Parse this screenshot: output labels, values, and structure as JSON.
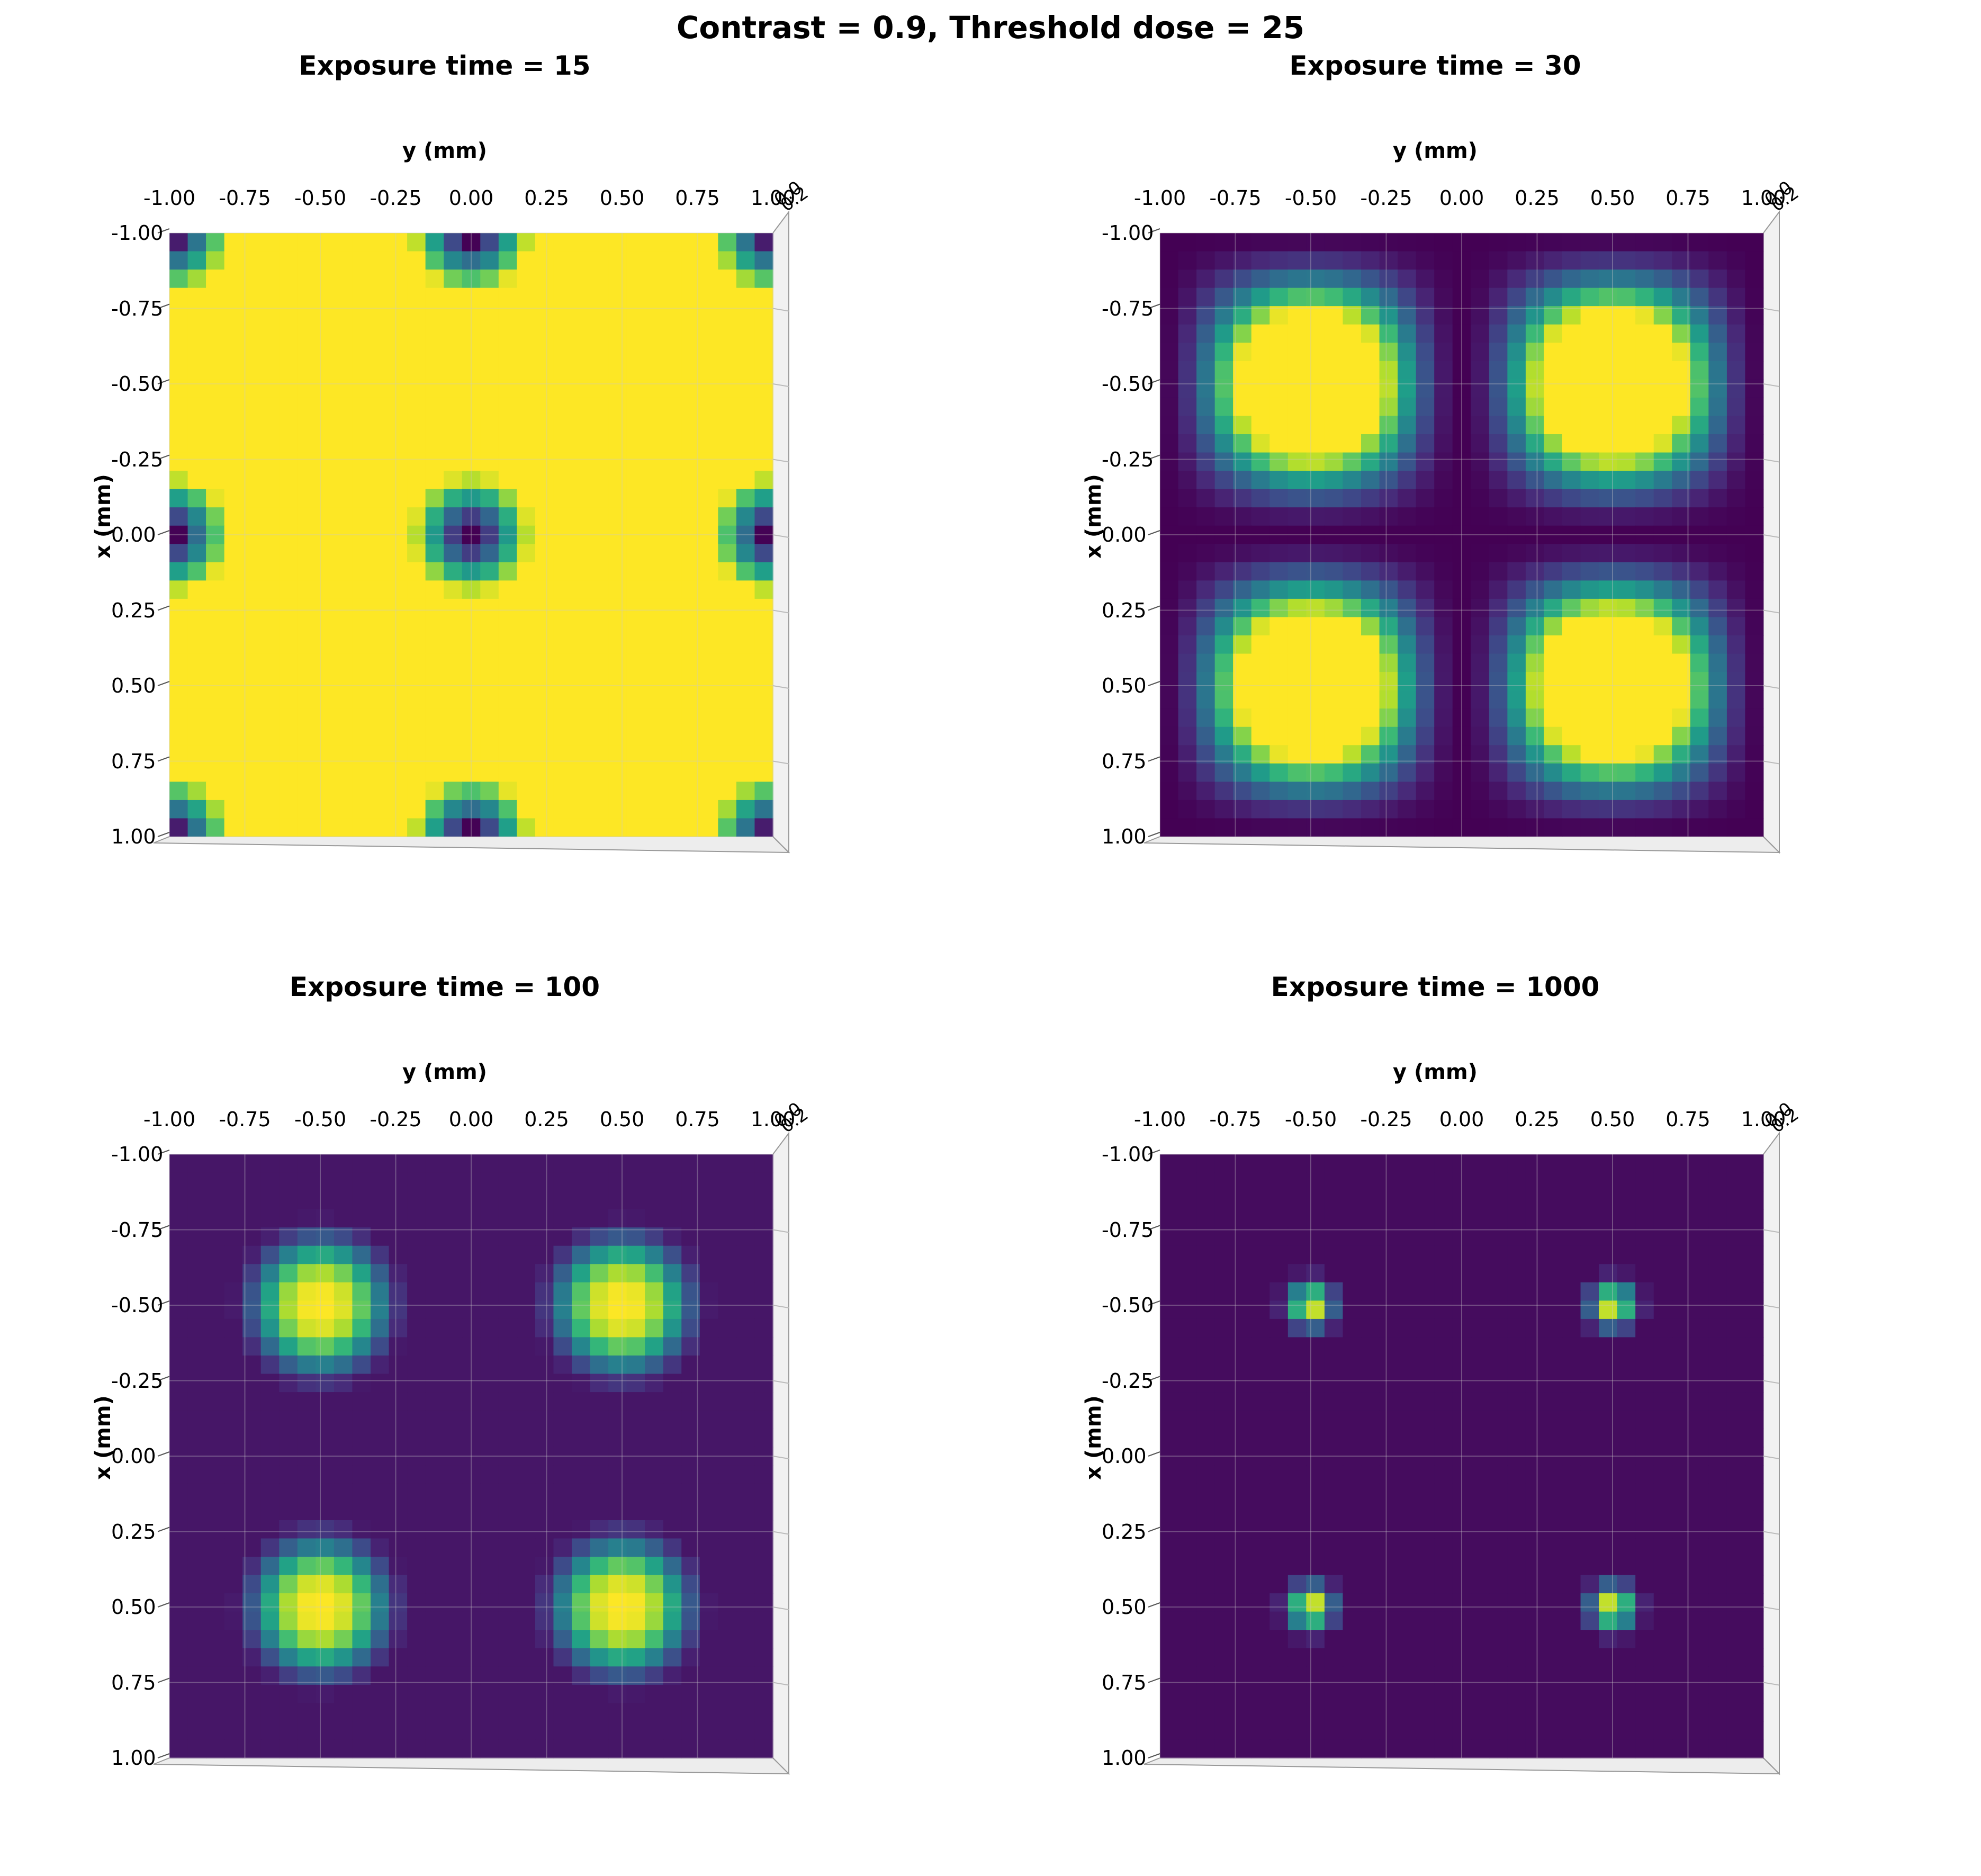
{
  "suptitle": "Contrast = 0.9, Threshold dose = 25",
  "chart_data": [
    {
      "type": "heatmap",
      "title": "Exposure time = 15",
      "exposure_time": 15,
      "xlabel": "x (mm)",
      "ylabel": "y (mm)",
      "x_ticks": [
        "-1.00",
        "-0.75",
        "-0.50",
        "-0.25",
        "0.00",
        "0.25",
        "0.50",
        "0.75",
        "1.00"
      ],
      "y_ticks": [
        "-1.00",
        "-0.75",
        "-0.50",
        "-0.25",
        "0.00",
        "0.25",
        "0.50",
        "0.75",
        "1.00"
      ],
      "x_range": [
        -1,
        1
      ],
      "y_range": [
        -1,
        1
      ],
      "grid_size": 33,
      "colormap": "viridis",
      "pattern": "yellow field with dark spots at x,y ∈ {-1, 0, 1}",
      "z_tick_fragments": [
        "0.0",
        "0.2"
      ]
    },
    {
      "type": "heatmap",
      "title": "Exposure time = 30",
      "exposure_time": 30,
      "xlabel": "x (mm)",
      "ylabel": "y (mm)",
      "x_ticks": [
        "-1.00",
        "-0.75",
        "-0.50",
        "-0.25",
        "0.00",
        "0.25",
        "0.50",
        "0.75",
        "1.00"
      ],
      "y_ticks": [
        "-1.00",
        "-0.75",
        "-0.50",
        "-0.25",
        "0.00",
        "0.25",
        "0.50",
        "0.75",
        "1.00"
      ],
      "x_range": [
        -1,
        1
      ],
      "y_range": [
        -1,
        1
      ],
      "grid_size": 33,
      "colormap": "viridis",
      "pattern": "four bright lobes at (±0.5, ±0.5), dark at center and edges",
      "z_tick_fragments": [
        "0.0",
        "0.2"
      ]
    },
    {
      "type": "heatmap",
      "title": "Exposure time = 100",
      "exposure_time": 100,
      "xlabel": "x (mm)",
      "ylabel": "y (mm)",
      "x_ticks": [
        "-1.00",
        "-0.75",
        "-0.50",
        "-0.25",
        "0.00",
        "0.25",
        "0.50",
        "0.75",
        "1.00"
      ],
      "y_ticks": [
        "-1.00",
        "-0.75",
        "-0.50",
        "-0.25",
        "0.00",
        "0.25",
        "0.50",
        "0.75",
        "1.00"
      ],
      "x_range": [
        -1,
        1
      ],
      "y_range": [
        -1,
        1
      ],
      "grid_size": 33,
      "colormap": "viridis",
      "pattern": "four round bright spots at (±0.5, ±0.5) on dark background",
      "z_tick_fragments": [
        "0.0",
        "0.2"
      ]
    },
    {
      "type": "heatmap",
      "title": "Exposure time = 1000",
      "exposure_time": 1000,
      "xlabel": "x (mm)",
      "ylabel": "y (mm)",
      "x_ticks": [
        "-1.00",
        "-0.75",
        "-0.50",
        "-0.25",
        "0.00",
        "0.25",
        "0.50",
        "0.75",
        "1.00"
      ],
      "y_ticks": [
        "-1.00",
        "-0.75",
        "-0.50",
        "-0.25",
        "0.00",
        "0.25",
        "0.50",
        "0.75",
        "1.00"
      ],
      "x_range": [
        -1,
        1
      ],
      "y_range": [
        -1,
        1
      ],
      "grid_size": 33,
      "colormap": "viridis",
      "pattern": "four small bright spots at (±0.5, ±0.5) on uniform dark background",
      "z_tick_fragments": [
        "0.0",
        "0.2"
      ]
    }
  ]
}
